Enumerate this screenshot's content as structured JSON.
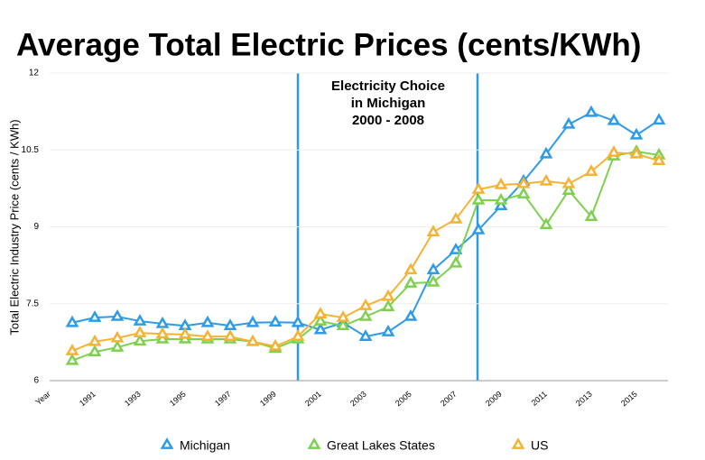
{
  "chart_data": {
    "type": "line",
    "title": "Average Total Electric Prices (cents/KWh)",
    "y_label": "Total Electric Industry Price (cents / KWh)",
    "annotation": [
      "Electricity Choice",
      "in Michigan",
      "2000 - 2008"
    ],
    "categories": [
      "Year",
      null,
      "1991",
      null,
      "1993",
      null,
      "1995",
      null,
      "1997",
      null,
      "1999",
      null,
      "2001",
      null,
      "2003",
      null,
      "2005",
      null,
      "2007",
      null,
      "2009",
      null,
      "2011",
      null,
      "2013",
      null,
      "2015",
      null
    ],
    "ylim": [
      6,
      12
    ],
    "yticks": [
      6,
      7.5,
      9,
      10.5,
      12
    ],
    "grid": true,
    "series": [
      {
        "name": "Michigan",
        "color": "#2f9be6",
        "values": [
          null,
          7.13,
          7.23,
          7.25,
          7.16,
          7.11,
          7.07,
          7.13,
          7.07,
          7.13,
          7.14,
          7.13,
          6.99,
          7.13,
          6.86,
          6.95,
          7.25,
          8.16,
          8.55,
          8.94,
          9.41,
          9.89,
          10.42,
          11.0,
          11.23,
          11.07,
          10.79,
          11.08
        ]
      },
      {
        "name": "Great Lakes States",
        "color": "#7ed14f",
        "values": [
          null,
          6.39,
          6.56,
          6.65,
          6.77,
          6.81,
          6.81,
          6.81,
          6.81,
          6.76,
          6.63,
          6.81,
          7.16,
          7.07,
          7.25,
          7.44,
          7.9,
          7.92,
          8.29,
          9.52,
          9.52,
          9.64,
          9.04,
          9.71,
          9.2,
          10.38,
          10.47,
          10.4
        ]
      },
      {
        "name": "US",
        "color": "#f5b335",
        "values": [
          null,
          6.58,
          6.76,
          6.83,
          6.93,
          6.91,
          6.9,
          6.86,
          6.86,
          6.76,
          6.67,
          6.86,
          7.3,
          7.23,
          7.46,
          7.64,
          8.16,
          8.9,
          9.15,
          9.73,
          9.82,
          9.84,
          9.89,
          9.84,
          10.08,
          10.45,
          10.42,
          10.29
        ]
      }
    ]
  }
}
